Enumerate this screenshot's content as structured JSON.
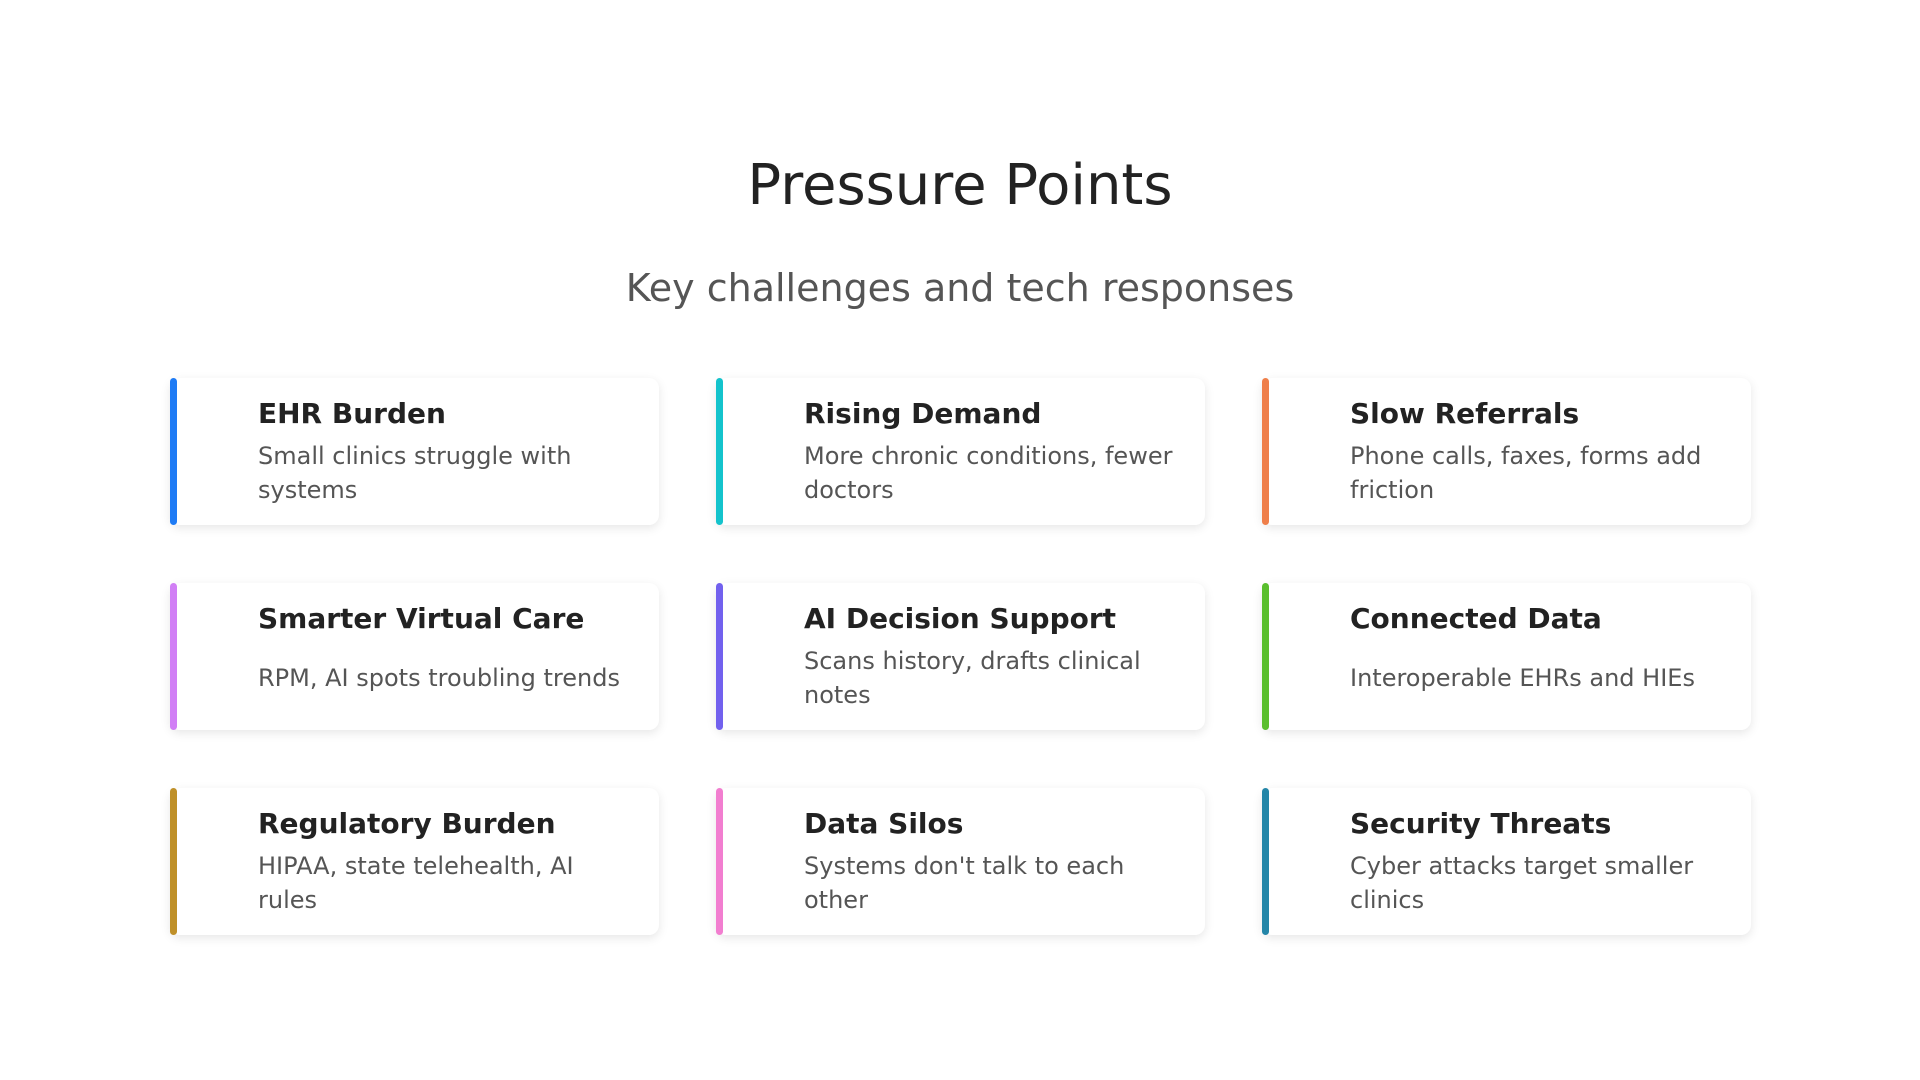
{
  "header": {
    "title": "Pressure Points",
    "subtitle": "Key challenges and tech responses"
  },
  "cards": [
    {
      "title": "EHR Burden",
      "description": "Small clinics struggle with systems",
      "color": "#1e7bf5"
    },
    {
      "title": "Rising Demand",
      "description": "More chronic conditions, fewer doctors",
      "color": "#14c3cc"
    },
    {
      "title": "Slow Referrals",
      "description": "Phone calls, faxes, forms add friction",
      "color": "#ef7f4a"
    },
    {
      "title": "Smarter Virtual Care",
      "description": "RPM, AI spots troubling trends",
      "color": "#d17ff5"
    },
    {
      "title": "AI Decision Support",
      "description": "Scans history, drafts clinical notes",
      "color": "#7261ee"
    },
    {
      "title": "Connected Data",
      "description": "Interoperable EHRs and HIEs",
      "color": "#5abf2e"
    },
    {
      "title": "Regulatory Burden",
      "description": "HIPAA, state telehealth, AI rules",
      "color": "#bf9029"
    },
    {
      "title": "Data Silos",
      "description": "Systems don't talk to each other",
      "color": "#f27ed0"
    },
    {
      "title": "Security Threats",
      "description": "Cyber attacks target smaller clinics",
      "color": "#2486a8"
    }
  ]
}
